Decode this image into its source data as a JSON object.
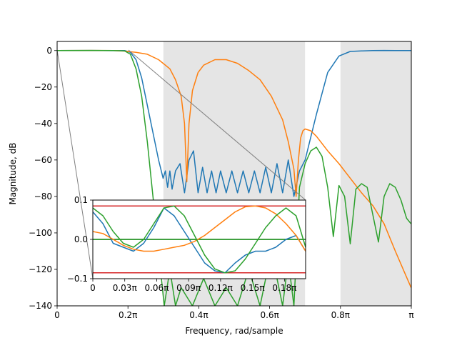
{
  "chart_data": [
    {
      "type": "line",
      "xlabel": "Frequency, rad/sample",
      "ylabel": "Magnitude, dB",
      "xlim": [
        0,
        3.14159
      ],
      "ylim": [
        -140,
        5
      ],
      "xticks": [
        {
          "value": 0,
          "label": "0"
        },
        {
          "value": 0.6283,
          "label": "0.2π"
        },
        {
          "value": 1.2566,
          "label": "0.4π"
        },
        {
          "value": 1.885,
          "label": "0.6π"
        },
        {
          "value": 2.5133,
          "label": "0.8π"
        },
        {
          "value": 3.1416,
          "label": "π"
        }
      ],
      "yticks": [
        {
          "value": 0,
          "label": "0"
        },
        {
          "value": -20,
          "label": "−20"
        },
        {
          "value": -40,
          "label": "−40"
        },
        {
          "value": -60,
          "label": "−60"
        },
        {
          "value": -80,
          "label": "−80"
        },
        {
          "value": -100,
          "label": "−100"
        },
        {
          "value": -120,
          "label": "−120"
        },
        {
          "value": -140,
          "label": "−140"
        }
      ],
      "shaded_bands": [
        {
          "x0": 0.9425,
          "x1": 2.1991,
          "color": "#e5e5e5"
        },
        {
          "x0": 2.5133,
          "x1": 3.1416,
          "color": "#e5e5e5"
        }
      ],
      "grid": false,
      "series": [
        {
          "color": "#1f77b4",
          "x": [
            0,
            0.3,
            0.5,
            0.6,
            0.65,
            0.7,
            0.75,
            0.8,
            0.85,
            0.9,
            0.94,
            0.96,
            0.98,
            1.0,
            1.02,
            1.05,
            1.09,
            1.13,
            1.17,
            1.21,
            1.25,
            1.29,
            1.33,
            1.37,
            1.41,
            1.45,
            1.5,
            1.55,
            1.6,
            1.65,
            1.7,
            1.75,
            1.8,
            1.85,
            1.9,
            1.95,
            2.0,
            2.05,
            2.1,
            2.15,
            2.2,
            2.3,
            2.4,
            2.5,
            2.6,
            2.7,
            2.8,
            2.9,
            3.0,
            3.14
          ],
          "values": [
            0,
            0.05,
            -0.05,
            0.02,
            -1,
            -5,
            -15,
            -30,
            -45,
            -60,
            -70,
            -66,
            -75,
            -66,
            -76,
            -66,
            -62,
            -78,
            -60,
            -55,
            -78,
            -64,
            -78,
            -66,
            -78,
            -66,
            -78,
            -66,
            -78,
            -66,
            -78,
            -66,
            -78,
            -64,
            -78,
            -62,
            -78,
            -60,
            -80,
            -66,
            -60,
            -35,
            -12,
            -3,
            -0.5,
            -0.2,
            0,
            0.05,
            0,
            0
          ]
        },
        {
          "color": "#ff7f0e",
          "x": [
            0,
            0.3,
            0.5,
            0.6,
            0.7,
            0.8,
            0.9,
            1.0,
            1.05,
            1.1,
            1.13,
            1.15,
            1.17,
            1.2,
            1.25,
            1.3,
            1.4,
            1.5,
            1.6,
            1.7,
            1.8,
            1.9,
            2.0,
            2.05,
            2.1,
            2.12,
            2.14,
            2.16,
            2.18,
            2.2,
            2.25,
            2.3,
            2.4,
            2.5,
            2.6,
            2.7,
            2.8,
            2.9,
            3.0,
            3.14
          ],
          "values": [
            0,
            0.05,
            0,
            -0.3,
            -1,
            -2,
            -5,
            -10,
            -16,
            -25,
            -40,
            -72,
            -40,
            -22,
            -12,
            -8,
            -5,
            -5,
            -7,
            -11,
            -16,
            -25,
            -38,
            -50,
            -65,
            -80,
            -60,
            -48,
            -44,
            -43,
            -44,
            -47,
            -55,
            -62,
            -70,
            -78,
            -85,
            -95,
            -110,
            -130
          ]
        },
        {
          "color": "#2ca02c",
          "x": [
            0,
            0.3,
            0.5,
            0.6,
            0.65,
            0.7,
            0.75,
            0.8,
            0.85,
            0.9,
            0.95,
            1.0,
            1.05,
            1.1,
            1.2,
            1.3,
            1.4,
            1.5,
            1.6,
            1.7,
            1.8,
            1.9,
            2.0,
            2.05,
            2.1,
            2.15,
            2.2,
            2.25,
            2.3,
            2.35,
            2.4,
            2.45,
            2.5,
            2.55,
            2.6,
            2.65,
            2.7,
            2.75,
            2.8,
            2.85,
            2.9,
            2.95,
            3.0,
            3.05,
            3.1,
            3.14
          ],
          "values": [
            0,
            0.05,
            0,
            -0.2,
            -2,
            -10,
            -25,
            -50,
            -80,
            -110,
            -140,
            -120,
            -140,
            -130,
            -140,
            -125,
            -140,
            -130,
            -140,
            -120,
            -140,
            -110,
            -140,
            -115,
            -140,
            -75,
            -62,
            -55,
            -53,
            -58,
            -75,
            -102,
            -74,
            -80,
            -106,
            -76,
            -73,
            -75,
            -90,
            -105,
            -80,
            -73,
            -75,
            -82,
            -92,
            -95
          ]
        }
      ]
    },
    {
      "type": "line",
      "inset": true,
      "xlim": [
        0,
        0.628
      ],
      "ylim": [
        -0.1,
        0.1
      ],
      "xticks": [
        {
          "value": 0,
          "label": "0"
        },
        {
          "value": 0.0942,
          "label": "0.03π"
        },
        {
          "value": 0.1885,
          "label": "0.06π"
        },
        {
          "value": 0.2827,
          "label": "0.09π"
        },
        {
          "value": 0.377,
          "label": "0.12π"
        },
        {
          "value": 0.4712,
          "label": "0.15π"
        },
        {
          "value": 0.5655,
          "label": "0.18π"
        }
      ],
      "yticks": [
        {
          "value": 0.1,
          "label": "0.1"
        },
        {
          "value": 0.0,
          "label": "0.0"
        },
        {
          "value": -0.1,
          "label": "−0.1"
        }
      ],
      "hlines": [
        {
          "value": 0.085,
          "color": "#d62728"
        },
        {
          "value": -0.085,
          "color": "#d62728"
        },
        {
          "value": 0,
          "color": "#008000"
        }
      ],
      "series": [
        {
          "color": "#1f77b4",
          "x": [
            0,
            0.03,
            0.06,
            0.09,
            0.12,
            0.15,
            0.18,
            0.21,
            0.24,
            0.27,
            0.3,
            0.33,
            0.36,
            0.39,
            0.42,
            0.45,
            0.48,
            0.51,
            0.54,
            0.57,
            0.6,
            0.628
          ],
          "values": [
            0.07,
            0.04,
            -0.01,
            -0.02,
            -0.03,
            -0.01,
            0.03,
            0.08,
            0.06,
            0.02,
            -0.02,
            -0.06,
            -0.08,
            -0.085,
            -0.06,
            -0.04,
            -0.03,
            -0.03,
            -0.02,
            0.0,
            0.01,
            -0.03
          ]
        },
        {
          "color": "#ff7f0e",
          "x": [
            0,
            0.03,
            0.06,
            0.09,
            0.12,
            0.15,
            0.18,
            0.21,
            0.24,
            0.27,
            0.3,
            0.33,
            0.36,
            0.39,
            0.42,
            0.45,
            0.48,
            0.51,
            0.54,
            0.57,
            0.6,
            0.628
          ],
          "values": [
            0.02,
            0.015,
            0.0,
            -0.015,
            -0.025,
            -0.03,
            -0.03,
            -0.025,
            -0.02,
            -0.015,
            -0.005,
            0.01,
            0.03,
            0.05,
            0.07,
            0.083,
            0.085,
            0.08,
            0.065,
            0.04,
            0.01,
            -0.03
          ]
        },
        {
          "color": "#2ca02c",
          "x": [
            0,
            0.03,
            0.06,
            0.09,
            0.12,
            0.15,
            0.18,
            0.21,
            0.24,
            0.27,
            0.3,
            0.33,
            0.36,
            0.39,
            0.42,
            0.45,
            0.48,
            0.51,
            0.54,
            0.57,
            0.6,
            0.628
          ],
          "values": [
            0.08,
            0.06,
            0.02,
            -0.01,
            -0.02,
            0.0,
            0.04,
            0.08,
            0.085,
            0.06,
            0.01,
            -0.04,
            -0.075,
            -0.085,
            -0.08,
            -0.05,
            -0.01,
            0.03,
            0.06,
            0.08,
            0.06,
            -0.02
          ]
        }
      ]
    }
  ]
}
